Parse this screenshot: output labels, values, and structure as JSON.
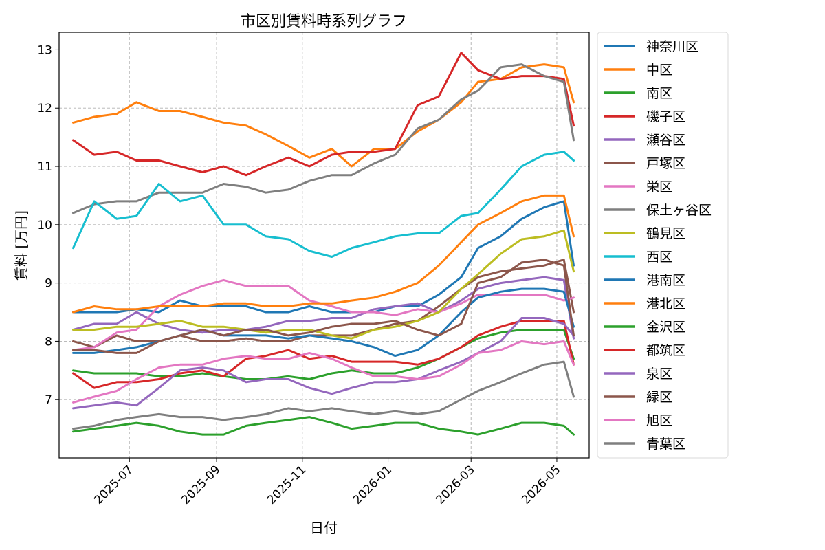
{
  "chart_data": {
    "type": "line",
    "title": "市区別賃料時系列グラフ",
    "xlabel": "日付",
    "ylabel": "賃料 [万円]",
    "xlim": [
      "2025-05-12",
      "2026-05-24"
    ],
    "ylim": [
      6.0,
      13.3
    ],
    "yticks": [
      7,
      8,
      9,
      10,
      11,
      12,
      13
    ],
    "xticks": [
      "2025-07",
      "2025-09",
      "2025-11",
      "2026-01",
      "2026-03",
      "2026-05"
    ],
    "grid": true,
    "legend_position": "outside-right-top",
    "x": [
      "2025-05-22",
      "2025-06-06",
      "2025-06-22",
      "2025-07-06",
      "2025-07-22",
      "2025-08-06",
      "2025-08-22",
      "2025-09-06",
      "2025-09-22",
      "2025-10-06",
      "2025-10-22",
      "2025-11-06",
      "2025-11-22",
      "2025-12-06",
      "2025-12-22",
      "2026-01-06",
      "2026-01-22",
      "2026-02-06",
      "2026-02-22",
      "2026-03-06",
      "2026-03-22",
      "2026-04-06",
      "2026-04-22",
      "2026-05-06",
      "2026-05-13"
    ],
    "series": [
      {
        "name": "神奈川区",
        "color": "#1f77b4",
        "values": [
          8.5,
          8.5,
          8.5,
          8.55,
          8.5,
          8.7,
          8.6,
          8.6,
          8.6,
          8.5,
          8.5,
          8.6,
          8.5,
          8.5,
          8.5,
          8.6,
          8.6,
          8.8,
          9.1,
          9.6,
          9.8,
          10.1,
          10.3,
          10.4,
          9.3
        ]
      },
      {
        "name": "中区",
        "color": "#ff7f0e",
        "values": [
          11.75,
          11.85,
          11.9,
          12.1,
          11.95,
          11.95,
          11.85,
          11.75,
          11.7,
          11.55,
          11.35,
          11.15,
          11.3,
          11.0,
          11.3,
          11.3,
          11.6,
          11.8,
          12.1,
          12.45,
          12.5,
          12.7,
          12.75,
          12.7,
          12.1
        ]
      },
      {
        "name": "南区",
        "color": "#2ca02c",
        "values": [
          7.5,
          7.45,
          7.45,
          7.45,
          7.4,
          7.4,
          7.45,
          7.4,
          7.35,
          7.35,
          7.4,
          7.35,
          7.45,
          7.5,
          7.45,
          7.45,
          7.55,
          7.7,
          7.9,
          8.05,
          8.15,
          8.2,
          8.2,
          8.2,
          7.7
        ]
      },
      {
        "name": "磯子区",
        "color": "#d62728",
        "values": [
          11.45,
          11.2,
          11.25,
          11.1,
          11.1,
          11.0,
          10.9,
          11.0,
          10.85,
          11.0,
          11.15,
          11.0,
          11.2,
          11.25,
          11.25,
          11.3,
          12.05,
          12.2,
          12.95,
          12.65,
          12.5,
          12.55,
          12.55,
          12.5,
          11.7
        ]
      },
      {
        "name": "瀬谷区",
        "color": "#9467bd",
        "values": [
          8.2,
          8.3,
          8.3,
          8.5,
          8.3,
          8.2,
          8.15,
          8.2,
          8.2,
          8.25,
          8.35,
          8.35,
          8.4,
          8.4,
          8.55,
          8.6,
          8.65,
          8.5,
          8.7,
          8.9,
          9.0,
          9.05,
          9.1,
          9.05,
          8.05
        ]
      },
      {
        "name": "戸塚区",
        "color": "#8c564b",
        "values": [
          8.0,
          7.9,
          8.1,
          8.0,
          8.0,
          8.1,
          8.0,
          8.0,
          8.05,
          8.0,
          8.0,
          8.1,
          8.1,
          8.1,
          8.2,
          8.3,
          8.35,
          8.6,
          8.9,
          9.1,
          9.2,
          9.25,
          9.3,
          9.4,
          8.5
        ]
      },
      {
        "name": "栄区",
        "color": "#e377c2",
        "values": [
          7.85,
          7.9,
          8.15,
          8.2,
          8.6,
          8.8,
          8.95,
          9.05,
          8.95,
          8.95,
          8.95,
          8.7,
          8.6,
          8.5,
          8.5,
          8.45,
          8.55,
          8.5,
          8.65,
          8.8,
          8.8,
          8.8,
          8.8,
          8.7,
          8.75
        ]
      },
      {
        "name": "保土ヶ谷区",
        "color": "#7f7f7f",
        "values": [
          10.2,
          10.35,
          10.4,
          10.4,
          10.55,
          10.55,
          10.55,
          10.7,
          10.65,
          10.55,
          10.6,
          10.75,
          10.85,
          10.85,
          11.05,
          11.2,
          11.65,
          11.8,
          12.15,
          12.3,
          12.7,
          12.75,
          12.55,
          12.45,
          11.45
        ]
      },
      {
        "name": "鶴見区",
        "color": "#bcbd22",
        "values": [
          8.2,
          8.2,
          8.25,
          8.25,
          8.3,
          8.35,
          8.25,
          8.25,
          8.2,
          8.15,
          8.2,
          8.2,
          8.1,
          8.05,
          8.2,
          8.25,
          8.35,
          8.5,
          8.9,
          9.15,
          9.5,
          9.75,
          9.8,
          9.9,
          9.2
        ]
      },
      {
        "name": "西区",
        "color": "#17becf",
        "values": [
          9.6,
          10.4,
          10.1,
          10.15,
          10.7,
          10.4,
          10.5,
          10.0,
          10.0,
          9.8,
          9.75,
          9.55,
          9.45,
          9.6,
          9.7,
          9.8,
          9.85,
          9.85,
          10.15,
          10.2,
          10.6,
          11.0,
          11.2,
          11.25,
          11.1
        ]
      },
      {
        "name": "港南区",
        "color": "#1f77b4",
        "values": [
          7.8,
          7.8,
          7.85,
          7.9,
          8.0,
          8.1,
          8.2,
          8.1,
          8.1,
          8.1,
          8.05,
          8.1,
          8.05,
          8.0,
          7.9,
          7.75,
          7.85,
          8.1,
          8.5,
          8.75,
          8.85,
          8.9,
          8.9,
          8.85,
          8.25
        ]
      },
      {
        "name": "港北区",
        "color": "#ff7f0e",
        "values": [
          8.5,
          8.6,
          8.55,
          8.55,
          8.6,
          8.6,
          8.6,
          8.65,
          8.65,
          8.6,
          8.6,
          8.65,
          8.65,
          8.7,
          8.75,
          8.85,
          9.0,
          9.3,
          9.7,
          10.0,
          10.2,
          10.4,
          10.5,
          10.5,
          9.8
        ]
      },
      {
        "name": "金沢区",
        "color": "#2ca02c",
        "values": [
          6.45,
          6.5,
          6.55,
          6.6,
          6.55,
          6.45,
          6.4,
          6.4,
          6.55,
          6.6,
          6.65,
          6.7,
          6.6,
          6.5,
          6.55,
          6.6,
          6.6,
          6.5,
          6.45,
          6.4,
          6.5,
          6.6,
          6.6,
          6.55,
          6.4
        ]
      },
      {
        "name": "都筑区",
        "color": "#d62728",
        "values": [
          7.45,
          7.2,
          7.3,
          7.3,
          7.35,
          7.45,
          7.5,
          7.4,
          7.7,
          7.75,
          7.85,
          7.7,
          7.75,
          7.65,
          7.65,
          7.65,
          7.6,
          7.7,
          7.9,
          8.1,
          8.25,
          8.35,
          8.35,
          8.35,
          7.6
        ]
      },
      {
        "name": "泉区",
        "color": "#9467bd",
        "values": [
          6.85,
          6.9,
          6.95,
          6.9,
          7.2,
          7.5,
          7.55,
          7.5,
          7.3,
          7.35,
          7.35,
          7.2,
          7.1,
          7.2,
          7.3,
          7.3,
          7.35,
          7.5,
          7.65,
          7.8,
          8.0,
          8.4,
          8.4,
          8.3,
          8.1
        ]
      },
      {
        "name": "緑区",
        "color": "#8c564b",
        "values": [
          7.85,
          7.85,
          7.8,
          7.8,
          8.0,
          8.1,
          8.2,
          8.1,
          8.2,
          8.2,
          8.1,
          8.15,
          8.25,
          8.3,
          8.3,
          8.35,
          8.2,
          8.1,
          8.3,
          9.0,
          9.1,
          9.35,
          9.4,
          9.3,
          8.1
        ]
      },
      {
        "name": "旭区",
        "color": "#e377c2",
        "values": [
          6.95,
          7.05,
          7.15,
          7.35,
          7.55,
          7.6,
          7.6,
          7.7,
          7.75,
          7.7,
          7.7,
          7.8,
          7.7,
          7.55,
          7.4,
          7.4,
          7.35,
          7.4,
          7.6,
          7.8,
          7.85,
          8.0,
          7.95,
          8.0,
          7.6
        ]
      },
      {
        "name": "青葉区",
        "color": "#7f7f7f",
        "values": [
          6.5,
          6.55,
          6.65,
          6.7,
          6.75,
          6.7,
          6.7,
          6.65,
          6.7,
          6.75,
          6.85,
          6.8,
          6.85,
          6.8,
          6.75,
          6.8,
          6.75,
          6.8,
          7.0,
          7.15,
          7.3,
          7.45,
          7.6,
          7.65,
          7.05
        ]
      }
    ]
  }
}
